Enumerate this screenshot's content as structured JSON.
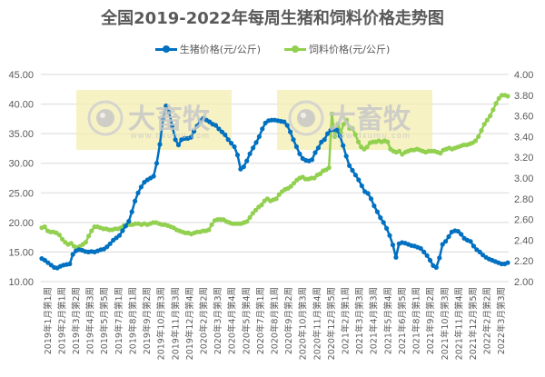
{
  "title": "全国2019-2022年每周生猪和饲料价格走势图",
  "legend": [
    {
      "label": "生猪价格(元/公斤)",
      "color": "#0070C0"
    },
    {
      "label": "饲料价格(元/公斤)",
      "color": "#92D050"
    }
  ],
  "watermark": {
    "text": "大畜牧",
    "url": "www.dxumu.com"
  },
  "chart_data": {
    "type": "line",
    "title": "全国2019-2022年每周生猪和饲料价格走势图",
    "xlabel": "",
    "ylabel": "生猪价格(元/公斤)",
    "y2label": "饲料价格(元/公斤)",
    "ylim": [
      10,
      45
    ],
    "y2lim": [
      2.0,
      4.0
    ],
    "yticks": [
      "10.00",
      "15.00",
      "20.00",
      "25.00",
      "30.00",
      "35.00",
      "40.00",
      "45.00"
    ],
    "y2ticks": [
      "2.00",
      "2.20",
      "2.40",
      "2.60",
      "2.80",
      "3.00",
      "3.20",
      "3.40",
      "3.60",
      "3.80",
      "4.00"
    ],
    "grid": true,
    "legend_position": "top",
    "categories": [
      "2019年1月第1周",
      "2019年2月第1周",
      "2019年3月第2周",
      "2019年4月第3周",
      "2019年5月第5周",
      "2019年7月第1周",
      "2019年8月第1周",
      "2019年9月第2周",
      "2019年10月第3周",
      "2019年11月第3周",
      "2019年12月第4周",
      "2020年2月第2周",
      "2020年3月第3周",
      "2020年4月第4周",
      "2020年5月第4周",
      "2020年7月第1周",
      "2020年8月第1周",
      "2020年9月第2周",
      "2020年10月第3周",
      "2020年11月第4周",
      "2020年12月第5周",
      "2021年2月第1周",
      "2021年3月第3周",
      "2021年4月第3周",
      "2021年5月第4周",
      "2021年6月第5周",
      "2021年8月第1周",
      "2021年9月第2周",
      "2021年10月第3周",
      "2021年11月第4周",
      "2021年12月第5周",
      "2022年2月第2周",
      "2022年3月第3周"
    ],
    "series": [
      {
        "name": "生猪价格(元/公斤)",
        "axis": "left",
        "color": "#0070C0",
        "values": [
          13.9,
          13.6,
          13.2,
          12.8,
          12.4,
          12.3,
          12.6,
          12.8,
          12.9,
          13.0,
          14.6,
          15.2,
          15.4,
          15.3,
          15.1,
          15.0,
          15.1,
          15.0,
          15.2,
          15.4,
          15.5,
          15.9,
          16.4,
          17.0,
          17.4,
          17.8,
          18.6,
          19.4,
          20.2,
          21.8,
          23.6,
          25.0,
          26.0,
          26.8,
          27.2,
          27.5,
          27.8,
          30.0,
          33.2,
          37.4,
          39.7,
          38.6,
          36.3,
          34.0,
          33.1,
          34.0,
          34.2,
          34.2,
          34.4,
          35.4,
          36.3,
          37.2,
          37.6,
          37.3,
          37.0,
          36.6,
          36.4,
          35.8,
          35.3,
          34.8,
          34.0,
          33.4,
          32.8,
          31.4,
          29.0,
          29.4,
          30.4,
          31.6,
          32.6,
          33.5,
          34.5,
          35.8,
          36.8,
          37.2,
          37.3,
          37.3,
          37.2,
          37.1,
          37.0,
          36.4,
          35.3,
          34.0,
          32.8,
          31.6,
          30.8,
          30.5,
          30.4,
          30.6,
          31.8,
          32.6,
          33.6,
          34.0,
          35.0,
          35.6,
          35.7,
          35.6,
          34.6,
          33.0,
          31.2,
          29.6,
          28.8,
          28.0,
          27.2,
          26.2,
          25.2,
          24.9,
          24.0,
          22.8,
          21.8,
          20.8,
          20.0,
          19.0,
          17.8,
          16.2,
          14.1,
          16.4,
          16.6,
          16.5,
          16.3,
          16.1,
          16.0,
          15.8,
          15.6,
          15.0,
          14.4,
          13.6,
          12.7,
          12.4,
          14.0,
          16.3,
          16.8,
          17.6,
          18.4,
          18.6,
          18.5,
          18.0,
          17.3,
          17.0,
          16.8,
          16.0,
          15.4,
          15.0,
          14.5,
          14.1,
          13.8,
          13.6,
          13.4,
          13.2,
          13.0,
          13.0,
          13.2
        ]
      },
      {
        "name": "饲料价格(元/公斤)",
        "axis": "right",
        "color": "#92D050",
        "values": [
          2.52,
          2.53,
          2.49,
          2.48,
          2.48,
          2.47,
          2.45,
          2.41,
          2.38,
          2.36,
          2.37,
          2.34,
          2.33,
          2.34,
          2.36,
          2.38,
          2.44,
          2.49,
          2.53,
          2.53,
          2.52,
          2.51,
          2.51,
          2.5,
          2.5,
          2.51,
          2.51,
          2.52,
          2.54,
          2.55,
          2.55,
          2.55,
          2.56,
          2.56,
          2.55,
          2.56,
          2.55,
          2.56,
          2.57,
          2.57,
          2.56,
          2.55,
          2.55,
          2.54,
          2.53,
          2.52,
          2.5,
          2.49,
          2.48,
          2.47,
          2.47,
          2.46,
          2.47,
          2.48,
          2.48,
          2.49,
          2.49,
          2.5,
          2.55,
          2.59,
          2.6,
          2.6,
          2.6,
          2.58,
          2.57,
          2.56,
          2.56,
          2.56,
          2.56,
          2.57,
          2.58,
          2.62,
          2.66,
          2.69,
          2.72,
          2.74,
          2.78,
          2.8,
          2.78,
          2.79,
          2.8,
          2.84,
          2.87,
          2.89,
          2.9,
          2.92,
          2.95,
          2.98,
          3.0,
          3.01,
          2.99,
          2.99,
          3.0,
          3.0,
          3.03,
          3.04,
          3.07,
          3.08,
          3.1,
          3.62,
          3.4,
          3.52,
          3.44,
          3.52,
          3.56,
          3.48,
          3.48,
          3.42,
          3.35,
          3.3,
          3.28,
          3.3,
          3.34,
          3.35,
          3.35,
          3.36,
          3.35,
          3.36,
          3.35,
          3.28,
          3.26,
          3.25,
          3.26,
          3.23,
          3.25,
          3.26,
          3.27,
          3.27,
          3.28,
          3.27,
          3.26,
          3.25,
          3.26,
          3.26,
          3.26,
          3.25,
          3.24,
          3.27,
          3.28,
          3.29,
          3.28,
          3.29,
          3.3,
          3.31,
          3.32,
          3.32,
          3.33,
          3.34,
          3.36,
          3.4,
          3.46,
          3.52,
          3.56,
          3.6,
          3.66,
          3.72,
          3.77,
          3.8,
          3.8,
          3.79
        ]
      }
    ]
  }
}
